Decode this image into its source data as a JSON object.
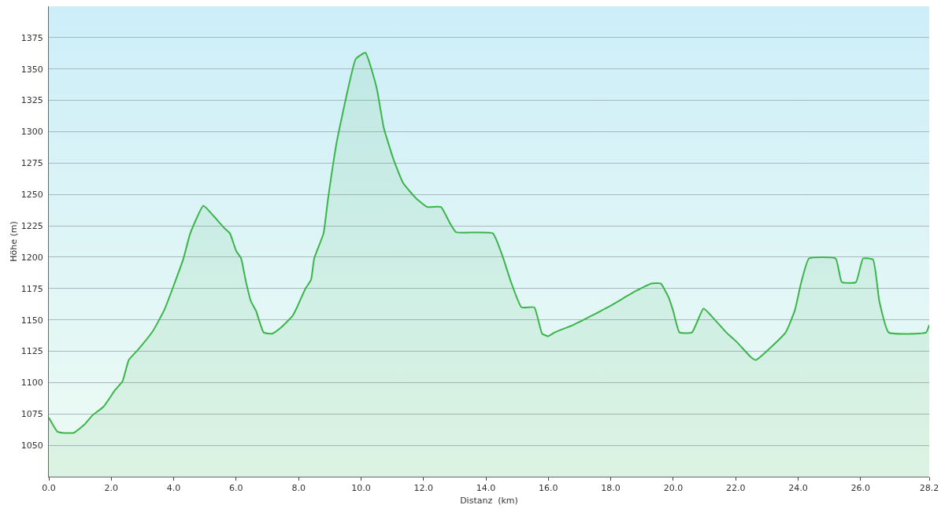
{
  "chart_data": {
    "type": "area",
    "xlabel": "Distanz  (km)",
    "ylabel": "Höhe (m)",
    "color": "#3bb54a",
    "grid": "y",
    "marker": "none",
    "line_style": "solid",
    "x": [
      0,
      0.27,
      0.43,
      0.8,
      1.16,
      1.4,
      1.76,
      2.12,
      2.36,
      2.56,
      2.85,
      3.33,
      3.7,
      4.3,
      4.53,
      4.95,
      5.27,
      5.63,
      5.8,
      6.0,
      6.16,
      6.3,
      6.47,
      6.64,
      6.88,
      7.15,
      7.44,
      7.8,
      7.95,
      8.22,
      8.4,
      8.5,
      8.8,
      8.94,
      9.23,
      9.6,
      9.83,
      10.14,
      10.5,
      10.73,
      11.04,
      11.35,
      11.76,
      12.12,
      12.56,
      12.85,
      13.04,
      14.22,
      14.53,
      14.82,
      15.14,
      15.55,
      15.8,
      16.0,
      16.2,
      16.8,
      17.9,
      18.8,
      19.3,
      19.6,
      19.85,
      20.0,
      20.2,
      20.6,
      20.97,
      21.3,
      21.7,
      22.05,
      22.5,
      22.65,
      23.6,
      23.9,
      24.1,
      24.35,
      25.2,
      25.4,
      25.85,
      26.08,
      26.4,
      26.6,
      26.9,
      28.1,
      28.2
    ],
    "values": [
      1072,
      1061,
      1060,
      1060,
      1067,
      1074,
      1081,
      1094,
      1101,
      1118,
      1126,
      1141,
      1158,
      1198,
      1219,
      1241,
      1233,
      1223,
      1219,
      1205,
      1199,
      1182,
      1165,
      1157,
      1140,
      1139,
      1144,
      1153,
      1160,
      1175,
      1182,
      1199,
      1219,
      1246,
      1293,
      1336,
      1358,
      1363,
      1335,
      1303,
      1278,
      1259,
      1247,
      1240,
      1240,
      1227,
      1220,
      1219,
      1201,
      1179,
      1160,
      1160,
      1139,
      1137,
      1140,
      1146,
      1160,
      1173,
      1179,
      1179,
      1168,
      1157,
      1140,
      1140,
      1159,
      1151,
      1140,
      1132,
      1120,
      1118,
      1140,
      1158,
      1180,
      1199,
      1199,
      1180,
      1180,
      1199,
      1198,
      1165,
      1140,
      1140,
      1146
    ],
    "xlim": [
      0,
      28.2
    ],
    "ylim": [
      1025,
      1400
    ],
    "xticks": [
      {
        "value": 0,
        "label": "0.0"
      },
      {
        "value": 2,
        "label": "2.0"
      },
      {
        "value": 4,
        "label": "4.0"
      },
      {
        "value": 6,
        "label": "6.0"
      },
      {
        "value": 8,
        "label": "8.0"
      },
      {
        "value": 10,
        "label": "10.0"
      },
      {
        "value": 12,
        "label": "12.0"
      },
      {
        "value": 14,
        "label": "14.0"
      },
      {
        "value": 16,
        "label": "16.0"
      },
      {
        "value": 18,
        "label": "18.0"
      },
      {
        "value": 20,
        "label": "20.0"
      },
      {
        "value": 22,
        "label": "22.0"
      },
      {
        "value": 24,
        "label": "24.0"
      },
      {
        "value": 26,
        "label": "26.0"
      },
      28.2
    ],
    "yticks": [
      1050,
      1075,
      1100,
      1125,
      1150,
      1175,
      1200,
      1225,
      1250,
      1275,
      1300,
      1325,
      1350,
      1375
    ]
  }
}
